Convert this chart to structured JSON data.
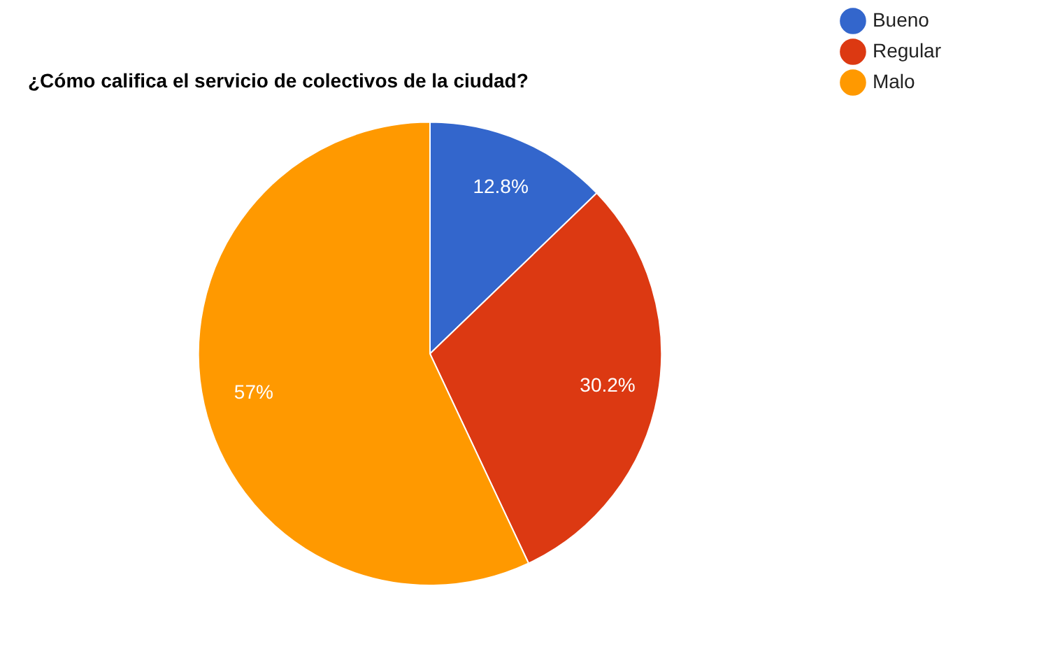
{
  "chart_data": {
    "type": "pie",
    "title": "¿Cómo califica el servicio de colectivos de la ciudad?",
    "categories": [
      "Bueno",
      "Regular",
      "Malo"
    ],
    "values": [
      12.8,
      30.2,
      57
    ],
    "colors": [
      "#3366cc",
      "#dc3912",
      "#ff9900"
    ],
    "value_labels": [
      "12.8%",
      "30.2%",
      "57%"
    ],
    "legend": "top right"
  }
}
